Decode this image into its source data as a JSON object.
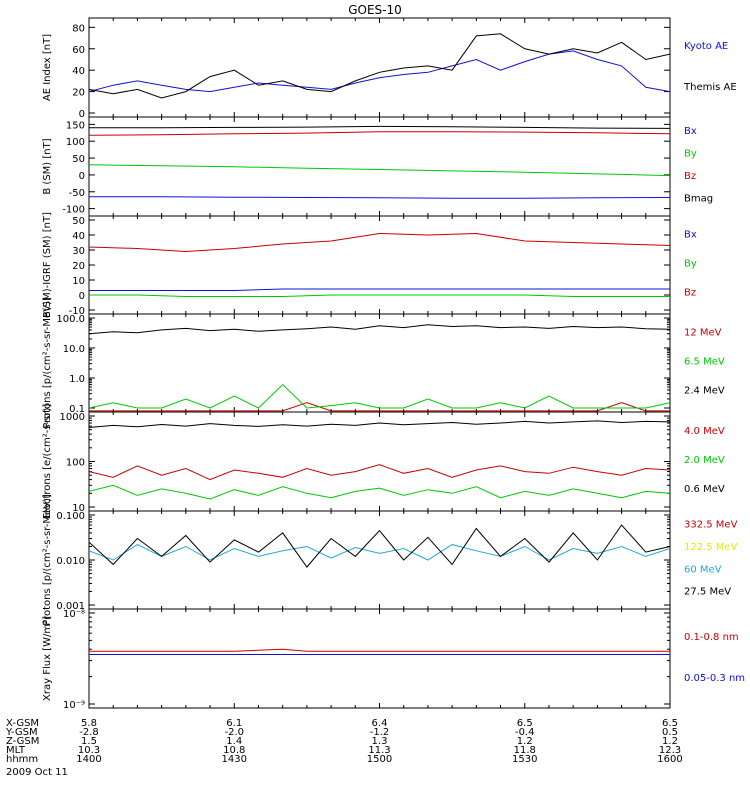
{
  "title": "GOES-10",
  "date_label": "2009 Oct 11",
  "colors": {
    "black": "#000000",
    "blue": "#1010d8",
    "red": "#c80000",
    "green": "#00c800",
    "cyan": "#20a8d8",
    "yellow": "#e8e800"
  },
  "orbit_table": {
    "row_labels": [
      "X-GSM",
      "Y-GSM",
      "Z-GSM",
      "MLT",
      "hhmm"
    ],
    "columns": [
      [
        "5.8",
        "-2.8",
        "1.5",
        "10.3",
        "1400"
      ],
      [
        "6.1",
        "-2.0",
        "1.4",
        "10.8",
        "1430"
      ],
      [
        "6.4",
        "-1.2",
        "1.3",
        "11.3",
        "1500"
      ],
      [
        "6.5",
        "-0.4",
        "1.2",
        "11.8",
        "1530"
      ],
      [
        "6.5",
        "0.5",
        "1.2",
        "12.3",
        "1600"
      ]
    ]
  },
  "chart_data": [
    {
      "type": "line",
      "title": "GOES-10",
      "ylabel": "AE Index [nT]",
      "ylim": [
        0,
        85
      ],
      "yticks": [
        "0",
        "20",
        "40",
        "60",
        "80"
      ],
      "ytick_values": [
        0,
        20,
        40,
        60,
        80
      ],
      "x": [
        1400,
        1405,
        1410,
        1415,
        1420,
        1425,
        1430,
        1435,
        1440,
        1445,
        1450,
        1455,
        1500,
        1505,
        1510,
        1515,
        1520,
        1525,
        1530,
        1535,
        1540,
        1545,
        1550,
        1555,
        1600
      ],
      "series": [
        {
          "name": "Kyoto AE",
          "color": "blue",
          "values": [
            20,
            26,
            30,
            26,
            22,
            20,
            24,
            28,
            26,
            24,
            22,
            28,
            33,
            36,
            38,
            44,
            50,
            40,
            48,
            55,
            58,
            50,
            44,
            24,
            20
          ]
        },
        {
          "name": "Themis AE",
          "color": "black",
          "values": [
            22,
            18,
            22,
            14,
            20,
            34,
            40,
            26,
            30,
            22,
            20,
            30,
            38,
            42,
            44,
            40,
            72,
            74,
            60,
            55,
            60,
            56,
            66,
            50,
            55
          ]
        }
      ]
    },
    {
      "type": "line",
      "ylabel": "B (SM) [nT]",
      "ylim": [
        -110,
        160
      ],
      "yticks": [
        "-100",
        "-50",
        "0",
        "50",
        "100",
        "150"
      ],
      "ytick_values": [
        -100,
        -50,
        0,
        50,
        100,
        150
      ],
      "x": [
        1400,
        1415,
        1430,
        1445,
        1500,
        1515,
        1530,
        1545,
        1600
      ],
      "series": [
        {
          "name": "Bx",
          "color": "blue",
          "values": [
            -65,
            -65,
            -66,
            -67,
            -68,
            -69,
            -69,
            -68,
            -67
          ]
        },
        {
          "name": "By",
          "color": "green",
          "values": [
            30,
            27,
            24,
            20,
            16,
            12,
            8,
            3,
            -2
          ]
        },
        {
          "name": "Bz",
          "color": "red",
          "values": [
            118,
            119,
            122,
            124,
            128,
            128,
            127,
            125,
            122
          ]
        },
        {
          "name": "Bmag",
          "color": "black",
          "values": [
            140,
            140,
            141,
            142,
            144,
            143,
            141,
            139,
            138
          ]
        }
      ]
    },
    {
      "type": "line",
      "ylabel": "B(SM)-IGRF (SM) [nT]",
      "ylim": [
        -10,
        50
      ],
      "yticks": [
        "-10",
        "0",
        "10",
        "20",
        "30",
        "40",
        "50"
      ],
      "ytick_values": [
        -10,
        0,
        10,
        20,
        30,
        40,
        50
      ],
      "x": [
        1400,
        1410,
        1420,
        1430,
        1440,
        1450,
        1500,
        1510,
        1520,
        1530,
        1540,
        1550,
        1600
      ],
      "series": [
        {
          "name": "Bx",
          "color": "blue",
          "values": [
            3,
            3,
            3,
            3,
            4,
            4,
            4,
            4,
            4,
            4,
            4,
            4,
            4
          ]
        },
        {
          "name": "By",
          "color": "green",
          "values": [
            0,
            0,
            -1,
            -1,
            -1,
            0,
            0,
            0,
            0,
            0,
            -1,
            -1,
            -1
          ]
        },
        {
          "name": "Bz",
          "color": "red",
          "values": [
            32,
            31,
            29,
            31,
            34,
            36,
            41,
            40,
            41,
            36,
            35,
            34,
            33
          ]
        }
      ]
    },
    {
      "type": "line",
      "ylabel": "Protons [p/(cm²-s-sr-MeV)]",
      "ylim": [
        0.1,
        100
      ],
      "scale": "log",
      "yticks": [
        "0.1",
        "1.0",
        "10.0",
        "100.0"
      ],
      "ytick_values": [
        0.1,
        1,
        10,
        100
      ],
      "x": [
        1400,
        1405,
        1410,
        1415,
        1420,
        1425,
        1430,
        1435,
        1440,
        1445,
        1450,
        1455,
        1500,
        1505,
        1510,
        1515,
        1520,
        1525,
        1530,
        1535,
        1540,
        1545,
        1550,
        1555,
        1600
      ],
      "series": [
        {
          "name": "12 MeV",
          "color": "red",
          "values": [
            0.08,
            0.08,
            0.08,
            0.08,
            0.08,
            0.08,
            0.08,
            0.08,
            0.08,
            0.15,
            0.08,
            0.08,
            0.08,
            0.08,
            0.08,
            0.08,
            0.08,
            0.08,
            0.08,
            0.08,
            0.08,
            0.08,
            0.15,
            0.08,
            0.08
          ]
        },
        {
          "name": "6.5 MeV",
          "color": "green",
          "values": [
            0.1,
            0.15,
            0.1,
            0.1,
            0.2,
            0.1,
            0.25,
            0.1,
            0.6,
            0.1,
            0.12,
            0.15,
            0.1,
            0.1,
            0.2,
            0.1,
            0.1,
            0.15,
            0.1,
            0.25,
            0.1,
            0.1,
            0.1,
            0.1,
            0.15
          ]
        },
        {
          "name": "2.4 MeV",
          "color": "black",
          "values": [
            30,
            35,
            32,
            40,
            45,
            38,
            42,
            36,
            40,
            44,
            50,
            42,
            55,
            48,
            60,
            52,
            55,
            48,
            50,
            45,
            52,
            48,
            50,
            44,
            42
          ]
        }
      ]
    },
    {
      "type": "line",
      "ylabel": "Electrons [e/(cm²-s-sr)]",
      "ylim": [
        10,
        1000
      ],
      "scale": "log",
      "yticks": [
        "10",
        "100",
        "1000"
      ],
      "ytick_values": [
        10,
        100,
        1000
      ],
      "x": [
        1400,
        1405,
        1410,
        1415,
        1420,
        1425,
        1430,
        1435,
        1440,
        1445,
        1450,
        1455,
        1500,
        1505,
        1510,
        1515,
        1520,
        1525,
        1530,
        1535,
        1540,
        1545,
        1550,
        1555,
        1600
      ],
      "series": [
        {
          "name": "4.0 MeV",
          "color": "red",
          "values": [
            60,
            45,
            80,
            50,
            70,
            40,
            65,
            55,
            45,
            70,
            50,
            60,
            85,
            55,
            70,
            45,
            65,
            80,
            60,
            55,
            75,
            60,
            50,
            70,
            65
          ]
        },
        {
          "name": "2.0 MeV",
          "color": "green",
          "values": [
            22,
            30,
            18,
            25,
            20,
            15,
            24,
            18,
            28,
            20,
            16,
            22,
            26,
            18,
            24,
            20,
            28,
            16,
            22,
            18,
            25,
            20,
            16,
            22,
            20
          ]
        },
        {
          "name": "0.6 MeV",
          "color": "black",
          "values": [
            560,
            620,
            580,
            650,
            600,
            680,
            620,
            590,
            640,
            600,
            660,
            620,
            700,
            640,
            680,
            720,
            660,
            700,
            760,
            700,
            740,
            780,
            720,
            760,
            740
          ]
        }
      ]
    },
    {
      "type": "line",
      "ylabel": "Protons [p/(cm²-s-sr-MeV)]",
      "ylim": [
        0.001,
        0.1
      ],
      "scale": "log",
      "yticks": [
        "0.001",
        "0.010",
        "0.100"
      ],
      "ytick_values": [
        0.001,
        0.01,
        0.1
      ],
      "x": [
        1400,
        1405,
        1410,
        1415,
        1420,
        1425,
        1430,
        1435,
        1440,
        1445,
        1450,
        1455,
        1500,
        1505,
        1510,
        1515,
        1520,
        1525,
        1530,
        1535,
        1540,
        1545,
        1550,
        1555,
        1600
      ],
      "series": [
        {
          "name": "332.5 MeV",
          "color": "red",
          "values": [
            0.0005,
            0.0005,
            0.0005,
            0.0005,
            0.0005,
            0.0005,
            0.0005,
            0.0005,
            0.0005,
            0.0005,
            0.0005,
            0.0005,
            0.0005,
            0.0005,
            0.0005,
            0.0005,
            0.0005,
            0.0005,
            0.0005,
            0.0005,
            0.0005,
            0.0005,
            0.0005,
            0.0005,
            0.0005
          ]
        },
        {
          "name": "122.5 MeV",
          "color": "yellow",
          "values": [
            0.0005,
            0.0005,
            0.0005,
            0.0005,
            0.0005,
            0.0005,
            0.0005,
            0.0005,
            0.0005,
            0.0005,
            0.0005,
            0.0005,
            0.0005,
            0.0005,
            0.0005,
            0.0005,
            0.0005,
            0.0005,
            0.0005,
            0.0005,
            0.0005,
            0.0005,
            0.0005,
            0.0005,
            0.0005
          ]
        },
        {
          "name": "60 MeV",
          "color": "cyan",
          "values": [
            0.016,
            0.01,
            0.022,
            0.012,
            0.02,
            0.01,
            0.018,
            0.012,
            0.016,
            0.02,
            0.011,
            0.019,
            0.014,
            0.018,
            0.01,
            0.022,
            0.016,
            0.012,
            0.02,
            0.01,
            0.018,
            0.014,
            0.02,
            0.012,
            0.018
          ]
        },
        {
          "name": "27.5 MeV",
          "color": "black",
          "values": [
            0.025,
            0.008,
            0.03,
            0.012,
            0.035,
            0.009,
            0.028,
            0.015,
            0.04,
            0.007,
            0.03,
            0.012,
            0.045,
            0.01,
            0.032,
            0.008,
            0.05,
            0.012,
            0.03,
            0.009,
            0.04,
            0.01,
            0.06,
            0.015,
            0.02
          ]
        }
      ]
    },
    {
      "type": "line",
      "ylabel": "Xray Flux [W/m²]",
      "ylim": [
        1e-09,
        1e-08
      ],
      "scale": "log",
      "yticks": [
        "10⁻⁹",
        "10⁻⁸"
      ],
      "ytick_values": [
        1e-09,
        1e-08
      ],
      "x": [
        1400,
        1415,
        1430,
        1440,
        1445,
        1450,
        1500,
        1515,
        1530,
        1545,
        1600
      ],
      "series": [
        {
          "name": "0.1-0.8 nm",
          "color": "red",
          "values": [
            3.8e-09,
            3.8e-09,
            3.8e-09,
            4e-09,
            3.8e-09,
            3.8e-09,
            3.8e-09,
            3.8e-09,
            3.8e-09,
            3.8e-09,
            3.8e-09
          ]
        },
        {
          "name": "0.05-0.3 nm",
          "color": "blue",
          "values": [
            3.5e-09,
            3.5e-09,
            3.5e-09,
            3.5e-09,
            3.5e-09,
            3.5e-09,
            3.5e-09,
            3.5e-09,
            3.5e-09,
            3.5e-09,
            3.5e-09
          ]
        }
      ]
    }
  ]
}
